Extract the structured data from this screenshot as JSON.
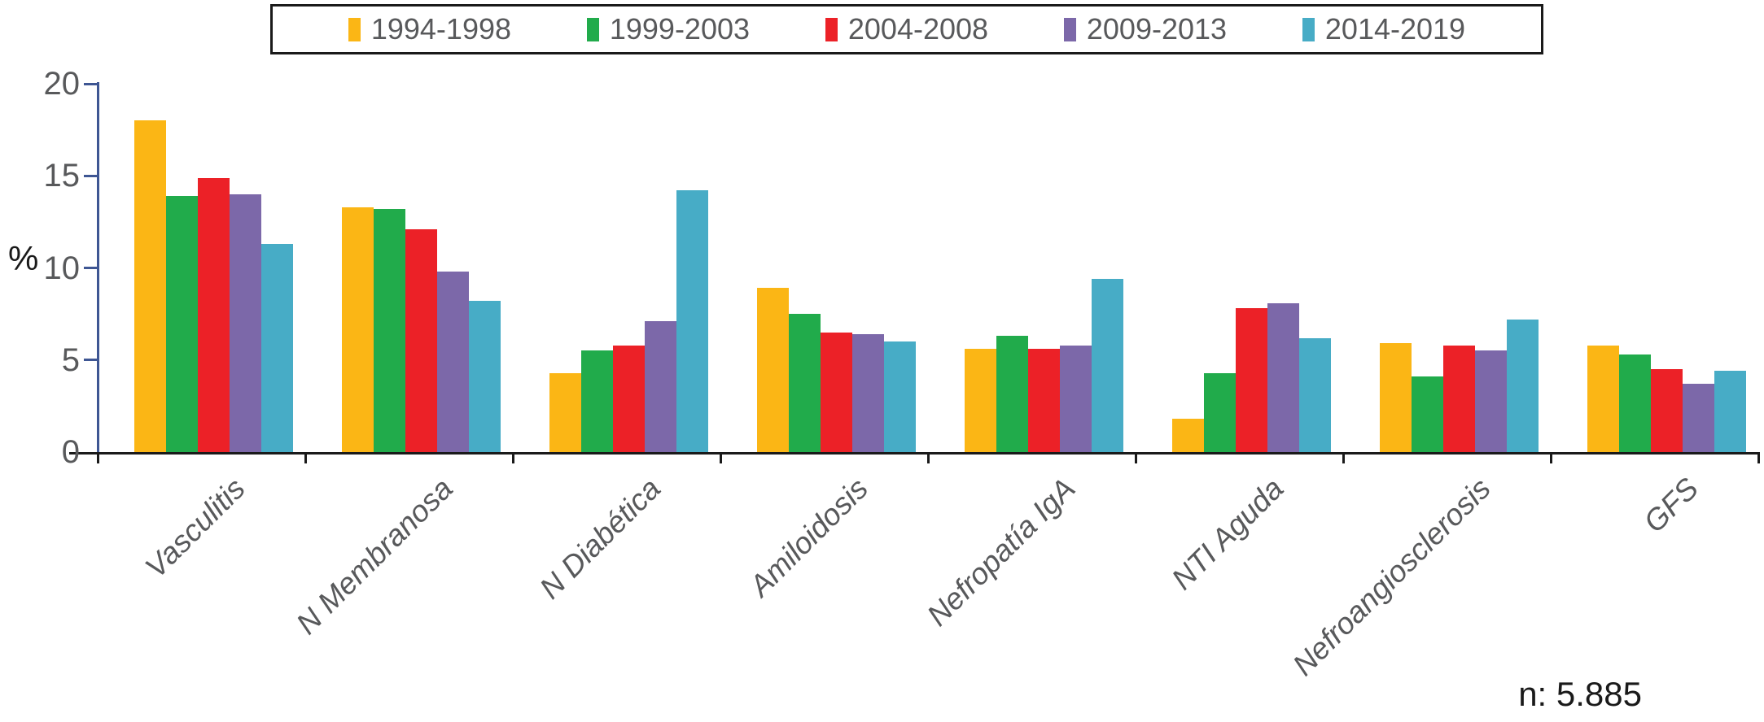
{
  "chart_data": {
    "type": "bar",
    "title": "",
    "xlabel": "",
    "ylabel": "%",
    "ylim": [
      0,
      20
    ],
    "yticks": [
      0,
      5,
      10,
      15,
      20
    ],
    "grid": false,
    "legend_position": "top",
    "annotation": "n: 5.885",
    "categories": [
      "Vasculitis",
      "N Membranosa",
      "N Diabética",
      "Amiloidosis",
      "Nefropatía IgA",
      "NTI Aguda",
      "Nefroangiosclerosis",
      "GFS"
    ],
    "series": [
      {
        "name": "1994-1998",
        "color": "#FBB615",
        "values": [
          18.0,
          13.3,
          4.3,
          8.9,
          5.6,
          1.8,
          5.9,
          5.8
        ]
      },
      {
        "name": "1999-2003",
        "color": "#21AB4B",
        "values": [
          13.9,
          13.2,
          5.5,
          7.5,
          6.3,
          4.3,
          4.1,
          5.3
        ]
      },
      {
        "name": "2004-2008",
        "color": "#EC2127",
        "values": [
          14.9,
          12.1,
          5.8,
          6.5,
          5.6,
          7.8,
          5.8,
          4.5
        ]
      },
      {
        "name": "2009-2013",
        "color": "#7C68A9",
        "values": [
          14.0,
          9.8,
          7.1,
          6.4,
          5.8,
          8.1,
          5.5,
          3.7
        ]
      },
      {
        "name": "2014-2019",
        "color": "#47ACC6",
        "values": [
          11.3,
          8.2,
          14.2,
          6.0,
          9.4,
          6.2,
          7.2,
          4.4
        ]
      }
    ],
    "colors": {
      "axis": "#3E5693",
      "baseline": "#1a1a1a",
      "text": "#58595b"
    }
  }
}
